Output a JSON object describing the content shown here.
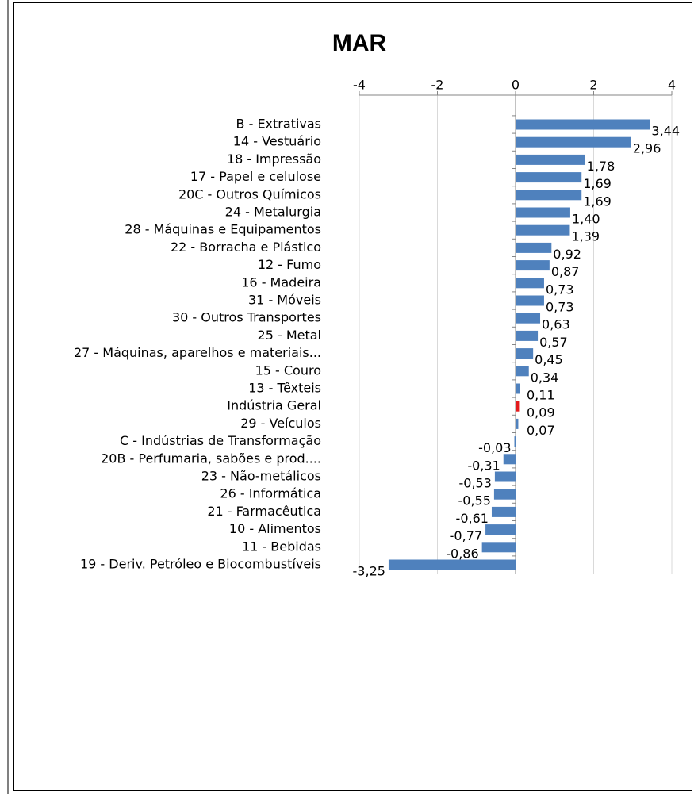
{
  "chart_data": {
    "type": "barh",
    "title": "MAR",
    "categories": [
      "B - Extrativas",
      "14 - Vestuário",
      "18 - Impressão",
      "17 - Papel e celulose",
      "20C - Outros Químicos",
      "24 - Metalurgia",
      "28 - Máquinas e Equipamentos",
      "22 - Borracha e Plástico",
      "12 - Fumo",
      "16 - Madeira",
      "31 - Móveis",
      "30 - Outros Transportes",
      "25 - Metal",
      "27 - Máquinas, aparelhos e materiais...",
      "15 - Couro",
      "13 - Têxteis",
      "Indústria Geral",
      "29 - Veículos",
      "C - Indústrias de Transformação",
      "20B - Perfumaria, sabões e prod....",
      "23 - Não-metálicos",
      "26 - Informática",
      "21 - Farmacêutica",
      "10 - Alimentos",
      "11 - Bebidas",
      "19 - Deriv. Petróleo e Biocombustíveis"
    ],
    "values": [
      3.44,
      2.96,
      1.78,
      1.69,
      1.69,
      1.4,
      1.39,
      0.92,
      0.87,
      0.73,
      0.73,
      0.63,
      0.57,
      0.45,
      0.34,
      0.11,
      0.09,
      0.07,
      -0.03,
      -0.31,
      -0.53,
      -0.55,
      -0.61,
      -0.77,
      -0.86,
      -3.25
    ],
    "value_labels": [
      "3,44",
      "2,96",
      "1,78",
      "1,69",
      "1,69",
      "1,40",
      "1,39",
      "0,92",
      "0,87",
      "0,73",
      "0,73",
      "0,63",
      "0,57",
      "0,45",
      "0,34",
      "0,11",
      "0,09",
      "0,07",
      "-0,03",
      "-0,31",
      "-0,53",
      "-0,55",
      "-0,61",
      "-0,77",
      "-0,86",
      "-3,25"
    ],
    "colors": [
      "#4f81bd",
      "#4f81bd",
      "#4f81bd",
      "#4f81bd",
      "#4f81bd",
      "#4f81bd",
      "#4f81bd",
      "#4f81bd",
      "#4f81bd",
      "#4f81bd",
      "#4f81bd",
      "#4f81bd",
      "#4f81bd",
      "#4f81bd",
      "#4f81bd",
      "#4f81bd",
      "#e31a1c",
      "#4f81bd",
      "#4f81bd",
      "#4f81bd",
      "#4f81bd",
      "#4f81bd",
      "#4f81bd",
      "#4f81bd",
      "#4f81bd",
      "#4f81bd"
    ],
    "xlim": [
      -4,
      4
    ],
    "xticks": [
      -4,
      -2,
      0,
      2,
      4
    ],
    "grid": true
  }
}
